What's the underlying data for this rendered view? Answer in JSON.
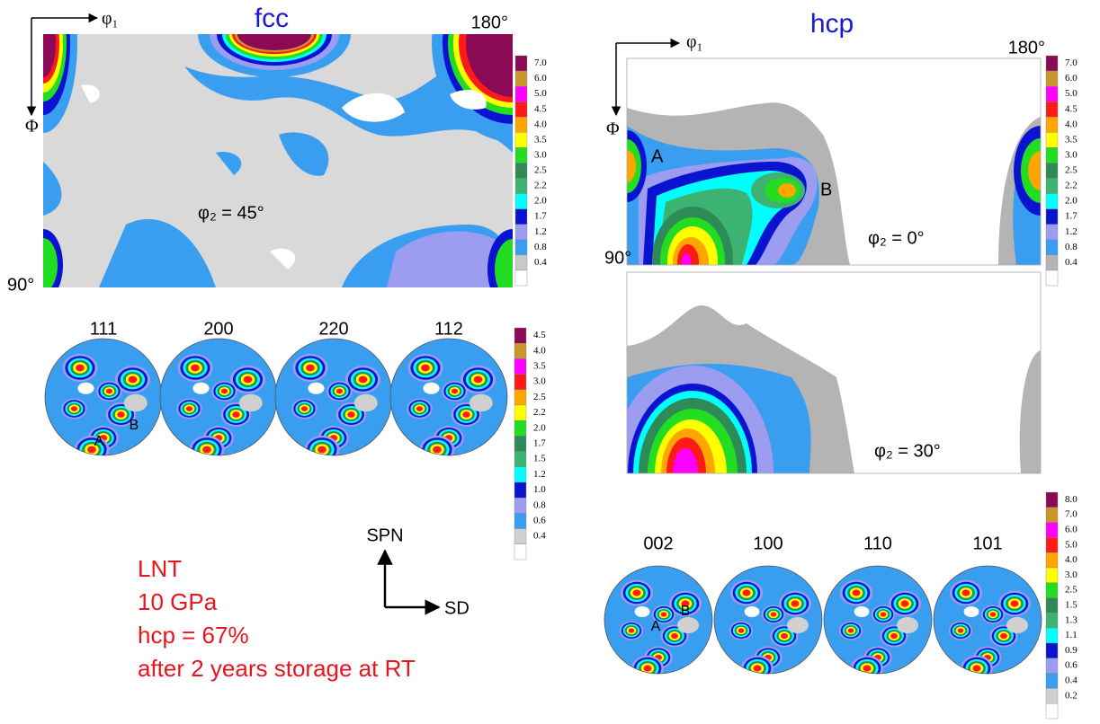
{
  "fcc": {
    "title": "fcc",
    "axis_x": "φ₁",
    "axis_y": "Φ",
    "x_end": "180°",
    "y_end": "90°",
    "section": "φ₂ = 45°",
    "odf_scale": [
      {
        "label": "7.0",
        "color": "#8c0a55"
      },
      {
        "label": "6.0",
        "color": "#c8962a"
      },
      {
        "label": "5.0",
        "color": "#ff00ff"
      },
      {
        "label": "4.5",
        "color": "#ff1a1a"
      },
      {
        "label": "4.0",
        "color": "#ffa500"
      },
      {
        "label": "3.5",
        "color": "#ffff00"
      },
      {
        "label": "3.0",
        "color": "#22dd22"
      },
      {
        "label": "2.5",
        "color": "#2e8b57"
      },
      {
        "label": "2.2",
        "color": "#3cb371"
      },
      {
        "label": "2.0",
        "color": "#00ffff"
      },
      {
        "label": "1.7",
        "color": "#0a14d0"
      },
      {
        "label": "1.2",
        "color": "#9c9cf0"
      },
      {
        "label": "0.8",
        "color": "#3a9ef0"
      },
      {
        "label": "0.4",
        "color": "#c8c8c8"
      }
    ],
    "pole_figures": [
      "111",
      "200",
      "220",
      "112"
    ],
    "pf_markers": [
      "A",
      "B"
    ],
    "pf_scale": [
      {
        "label": "4.5",
        "color": "#8c0a55"
      },
      {
        "label": "4.0",
        "color": "#c8962a"
      },
      {
        "label": "3.5",
        "color": "#ff00ff"
      },
      {
        "label": "3.0",
        "color": "#ff1a1a"
      },
      {
        "label": "2.5",
        "color": "#ffa500"
      },
      {
        "label": "2.2",
        "color": "#ffff00"
      },
      {
        "label": "2.0",
        "color": "#22dd22"
      },
      {
        "label": "1.7",
        "color": "#2e8b57"
      },
      {
        "label": "1.5",
        "color": "#3cb371"
      },
      {
        "label": "1.2",
        "color": "#00ffff"
      },
      {
        "label": "1.0",
        "color": "#0a14d0"
      },
      {
        "label": "0.8",
        "color": "#9c9cf0"
      },
      {
        "label": "0.6",
        "color": "#3a9ef0"
      },
      {
        "label": "0.4",
        "color": "#d0d0d0"
      }
    ]
  },
  "hcp": {
    "title": "hcp",
    "axis_x": "φ₁",
    "axis_y": "Φ",
    "x_end": "180°",
    "y_end": "90°",
    "sections": [
      "φ₂ = 0°",
      "φ₂ = 30°"
    ],
    "odf_markers": [
      "A",
      "B"
    ],
    "odf_scale": [
      {
        "label": "7.0",
        "color": "#8c0a55"
      },
      {
        "label": "6.0",
        "color": "#c8962a"
      },
      {
        "label": "5.0",
        "color": "#ff00ff"
      },
      {
        "label": "4.5",
        "color": "#ff1a1a"
      },
      {
        "label": "4.0",
        "color": "#ffa500"
      },
      {
        "label": "3.5",
        "color": "#ffff00"
      },
      {
        "label": "3.0",
        "color": "#22dd22"
      },
      {
        "label": "2.5",
        "color": "#2e8b57"
      },
      {
        "label": "2.2",
        "color": "#3cb371"
      },
      {
        "label": "2.0",
        "color": "#00ffff"
      },
      {
        "label": "1.7",
        "color": "#0a14d0"
      },
      {
        "label": "1.2",
        "color": "#9c9cf0"
      },
      {
        "label": "0.8",
        "color": "#3a9ef0"
      },
      {
        "label": "0.4",
        "color": "#b4b4b4"
      }
    ],
    "pole_figures": [
      "002",
      "100",
      "110",
      "101"
    ],
    "pf_markers": [
      "A",
      "B"
    ],
    "pf_scale": [
      {
        "label": "8.0",
        "color": "#8c0a55"
      },
      {
        "label": "7.0",
        "color": "#c8962a"
      },
      {
        "label": "6.0",
        "color": "#ff00ff"
      },
      {
        "label": "5.0",
        "color": "#ff1a1a"
      },
      {
        "label": "4.0",
        "color": "#ffa500"
      },
      {
        "label": "3.0",
        "color": "#ffff00"
      },
      {
        "label": "2.5",
        "color": "#22dd22"
      },
      {
        "label": "1.5",
        "color": "#2e8b57"
      },
      {
        "label": "1.3",
        "color": "#3cb371"
      },
      {
        "label": "1.1",
        "color": "#00ffff"
      },
      {
        "label": "0.9",
        "color": "#0a14d0"
      },
      {
        "label": "0.6",
        "color": "#9c9cf0"
      },
      {
        "label": "0.4",
        "color": "#3a9ef0"
      },
      {
        "label": "0.2",
        "color": "#d0d0d0"
      }
    ]
  },
  "directions": {
    "vertical": "SPN",
    "horizontal": "SD"
  },
  "conditions": [
    "LNT",
    "10 GPa",
    "hcp = 67%",
    "after 2 years storage at RT"
  ]
}
